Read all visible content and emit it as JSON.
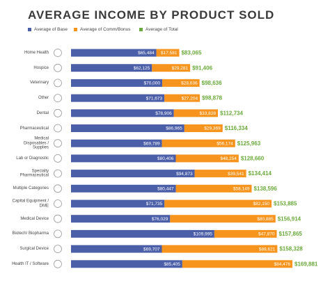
{
  "chart_data": {
    "type": "bar",
    "orientation": "horizontal",
    "stacked": true,
    "title": "AVERAGE INCOME BY PRODUCT SOLD",
    "categories": [
      "Home Health",
      "Hospice",
      "Veterinary",
      "Other",
      "Dental",
      "Pharmaceutical",
      "Medical Disposables / Supplies",
      "Lab or Diagnostic",
      "Specialty Pharmaceutical",
      "Multiple Categories",
      "Capital Equipment / DME",
      "Medical Device",
      "Biotech/ Biopharma",
      "Surgical Device",
      "Health IT / Software"
    ],
    "series": [
      {
        "name": "Average of Base",
        "color": "#4b5ea8",
        "values": [
          65484,
          62125,
          70000,
          71673,
          78906,
          86965,
          69789,
          80406,
          94873,
          80447,
          71735,
          76029,
          109995,
          69707,
          85405
        ],
        "value_labels": [
          "$65,484",
          "$62,125",
          "$70,000",
          "$71,673",
          "$78,906",
          "$86,965",
          "$69,789",
          "$80,406",
          "$94,873",
          "$80,447",
          "$71,735",
          "$76,029",
          "$109,995",
          "$69,707",
          "$85,405"
        ]
      },
      {
        "name": "Average of Comm/Bonus",
        "color": "#f7941d",
        "values": [
          17581,
          29281,
          28636,
          27204,
          33828,
          29369,
          56174,
          48254,
          39541,
          58149,
          82150,
          80885,
          47870,
          88621,
          84476
        ],
        "value_labels": [
          "$17,581",
          "$29,281",
          "$28,636",
          "$27,204",
          "$33,828",
          "$29,369",
          "$56,174",
          "$48,254",
          "$39,541",
          "$58,149",
          "$82,150",
          "$80,885",
          "$47,870",
          "$88,621",
          "$84,476"
        ]
      },
      {
        "name": "Average of Total",
        "color": "#6aaa3a",
        "values": [
          83065,
          91406,
          98636,
          98878,
          112734,
          116334,
          125963,
          128660,
          134414,
          138596,
          153885,
          156914,
          157865,
          158328,
          169881
        ],
        "value_labels": [
          "$83,065",
          "$91,406",
          "$98,636",
          "$98,878",
          "$112,734",
          "$116,334",
          "$125,963",
          "$128,660",
          "$134,414",
          "$138,596",
          "$153,885",
          "$156,914",
          "$157,865",
          "$158,328",
          "$169,881"
        ]
      }
    ]
  }
}
